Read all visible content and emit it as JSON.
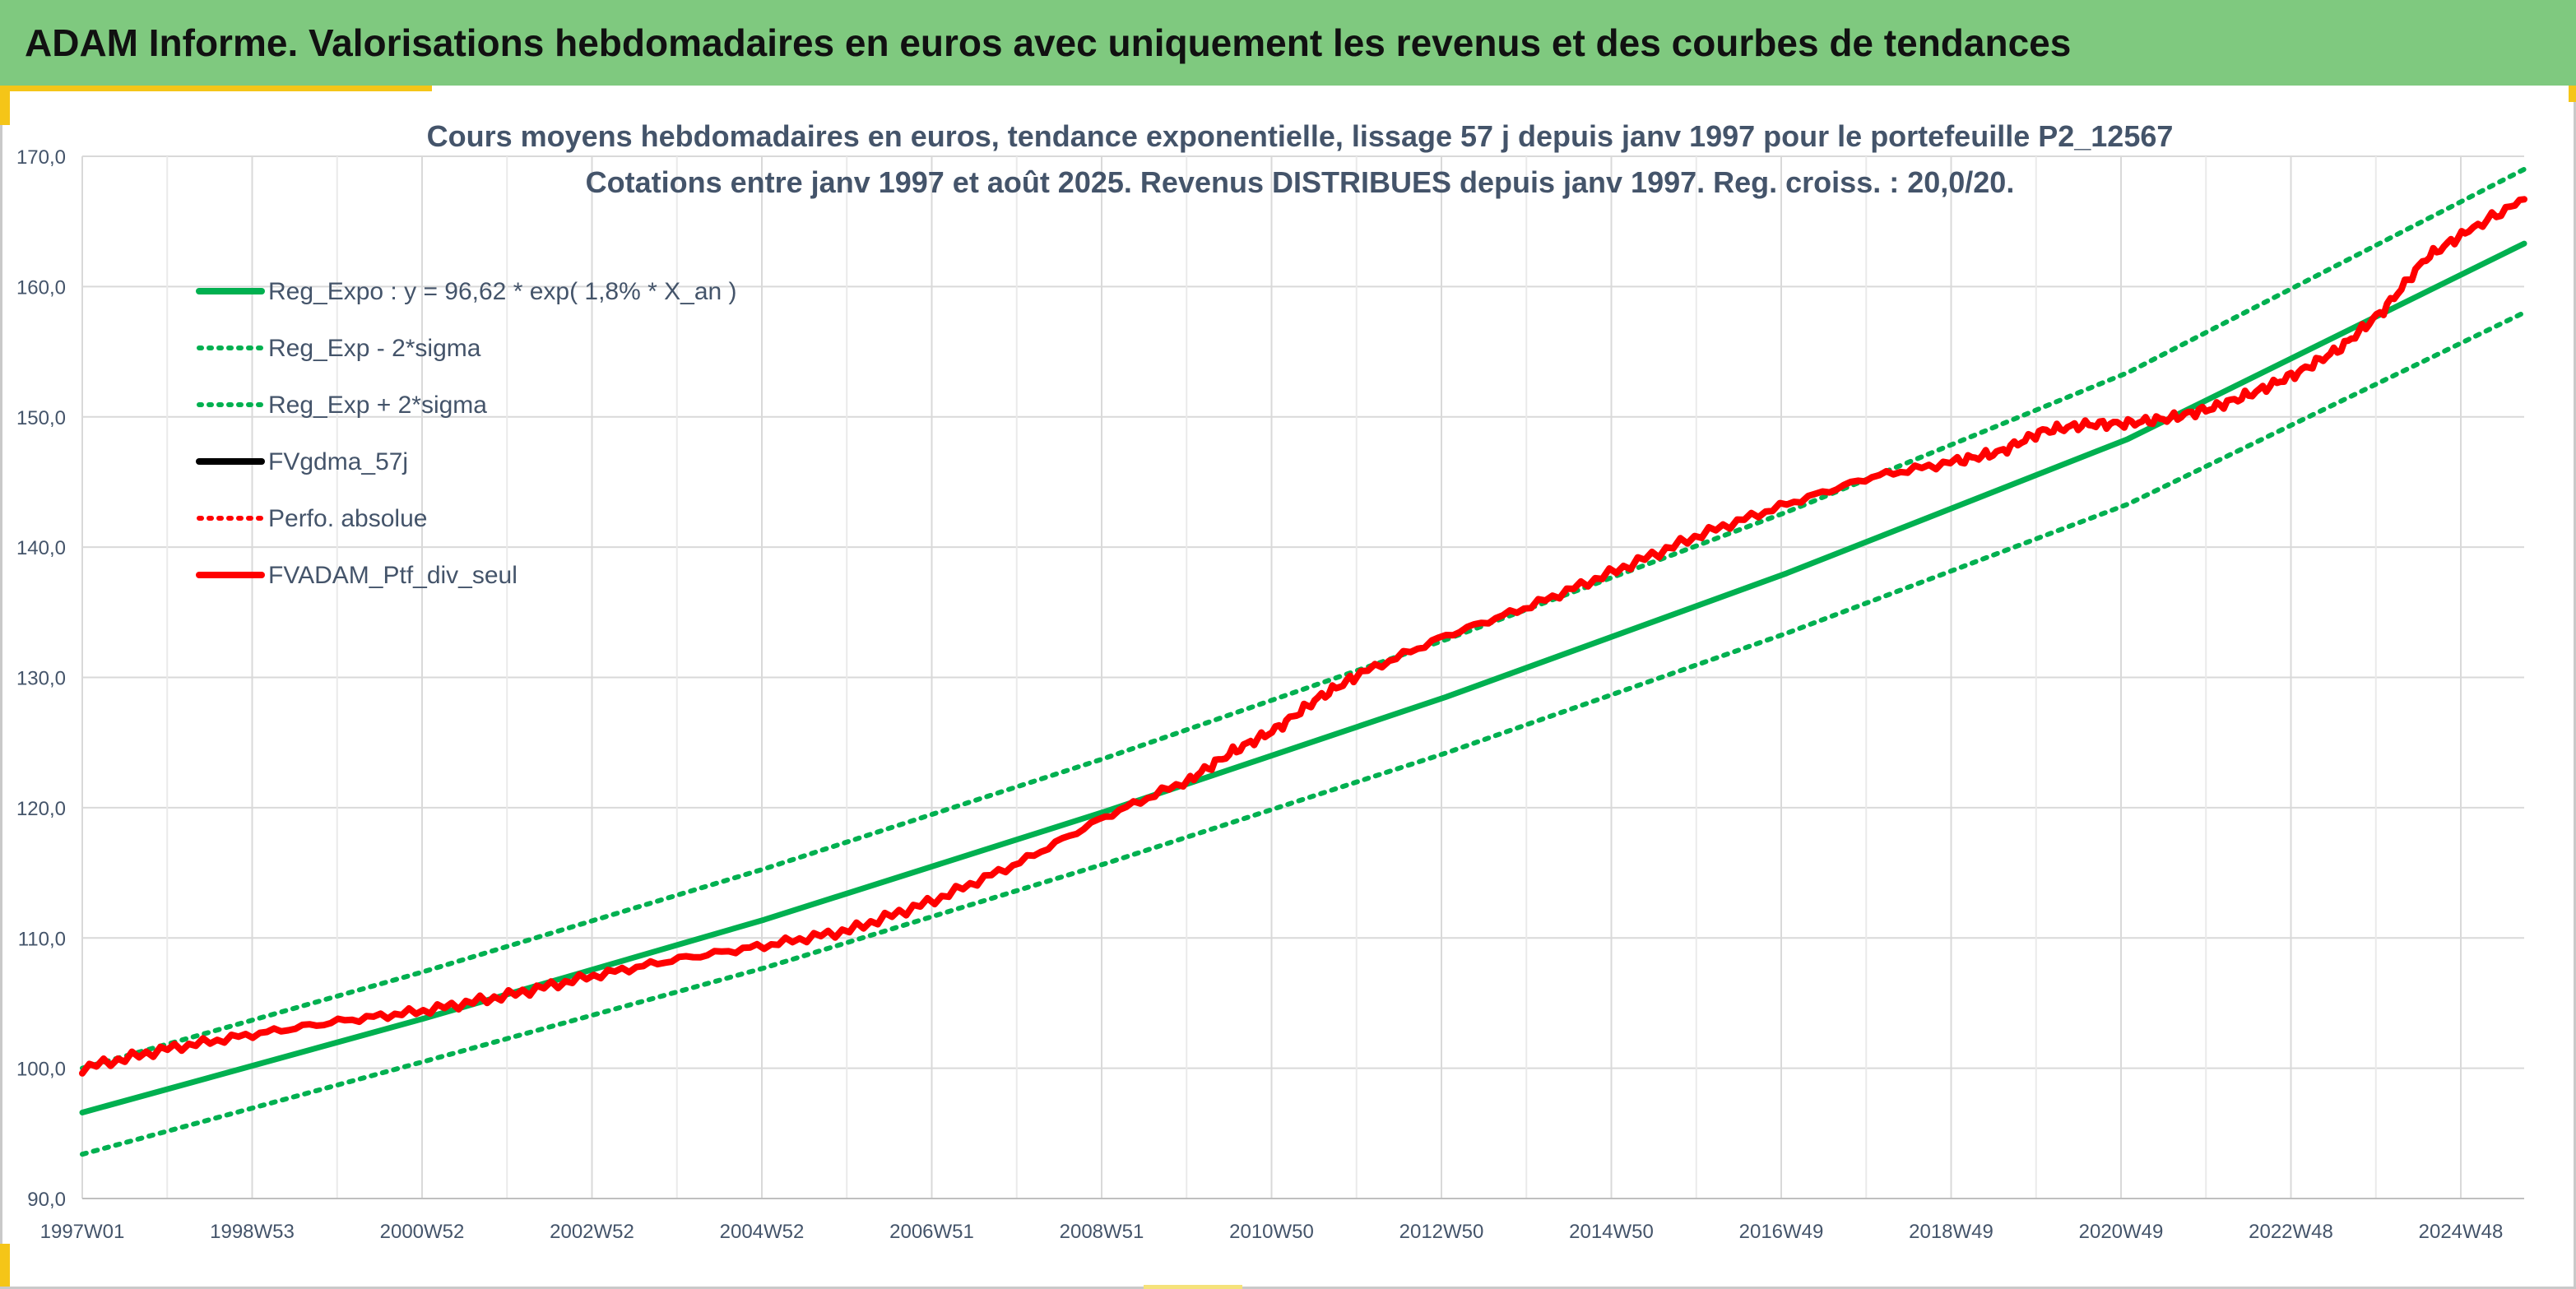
{
  "header": {
    "title": "ADAM Informe. Valorisations hebdomadaires en euros avec uniquement les revenus et des courbes de tendances"
  },
  "colors": {
    "header_bg": "#7fc97f",
    "accent": "#f5c518",
    "trend": "#00b050",
    "smoothed": "#000000",
    "portfolio": "#ff0000",
    "grid": "#d9d9d9",
    "text": "#44546a"
  },
  "chart_data": {
    "type": "line",
    "title": "Cours moyens hebdomadaires en euros, tendance exponentielle, lissage 57 j depuis janv 1997 pour le portefeuille P2_12567",
    "subtitle": "Cotations entre janv 1997 et août 2025. Revenus DISTRIBUES depuis janv 1997. Reg. croiss. : 20,0/20.",
    "xlabel": "",
    "ylabel": "",
    "ylim": [
      90,
      170
    ],
    "y_ticks": [
      "90,0",
      "100,0",
      "110,0",
      "120,0",
      "130,0",
      "140,0",
      "150,0",
      "160,0",
      "170,0"
    ],
    "x_tick_labels": [
      "1997W01",
      "1998W53",
      "2000W52",
      "2002W52",
      "2004W52",
      "2006W51",
      "2008W51",
      "2010W50",
      "2012W50",
      "2014W50",
      "2016W49",
      "2018W49",
      "2020W49",
      "2022W48",
      "2024W48"
    ],
    "x_range_years": [
      1997.0,
      2025.65
    ],
    "grid": true,
    "legend_position": "top-left",
    "legend": [
      {
        "name": "Reg_Expo : y = 96,62 * exp( 1,8% *  X_an )",
        "color": "#00b050",
        "style": "solid"
      },
      {
        "name": "Reg_Exp - 2*sigma",
        "color": "#00b050",
        "style": "dotted"
      },
      {
        "name": "Reg_Exp + 2*sigma",
        "color": "#00b050",
        "style": "dotted"
      },
      {
        "name": "FVgdma_57j",
        "color": "#000000",
        "style": "solid"
      },
      {
        "name": "Perfo. absolue",
        "color": "#ff0000",
        "style": "dotted"
      },
      {
        "name": "FVADAM_Ptf_div_seul",
        "color": "#ff0000",
        "style": "solid"
      }
    ],
    "series": [
      {
        "name": "Reg_Expo : y = 96,62 * exp( 1,8% *  X_an )",
        "x": [
          1997.0,
          2001.0,
          2005.0,
          2009.0,
          2013.0,
          2017.0,
          2021.0,
          2025.65
        ],
        "values": [
          96.6,
          103.8,
          111.4,
          119.7,
          128.5,
          138.0,
          148.3,
          163.3
        ]
      },
      {
        "name": "Reg_Exp - 2*sigma",
        "x": [
          1997.0,
          2001.0,
          2005.0,
          2009.0,
          2013.0,
          2017.0,
          2021.0,
          2025.65
        ],
        "values": [
          93.4,
          100.5,
          107.7,
          115.7,
          124.2,
          133.4,
          143.3,
          158.0
        ]
      },
      {
        "name": "Reg_Exp + 2*sigma",
        "x": [
          1997.0,
          2001.0,
          2005.0,
          2009.0,
          2013.0,
          2017.0,
          2021.0,
          2025.65
        ],
        "values": [
          100.0,
          107.4,
          115.3,
          123.8,
          132.9,
          142.7,
          153.4,
          169.0
        ]
      },
      {
        "name": "FVgdma_57j",
        "x": [
          1997.0,
          1998.0,
          1999.0,
          2000.0,
          2001.0,
          2002.0,
          2003.0,
          2004.0,
          2005.0,
          2006.0,
          2007.0,
          2008.0,
          2009.0,
          2010.0,
          2010.5,
          2011.0,
          2011.5,
          2012.0,
          2013.0,
          2014.0,
          2015.0,
          2016.0,
          2017.0,
          2018.0,
          2019.0,
          2019.5,
          2020.0,
          2020.5,
          2021.0,
          2021.5,
          2022.0,
          2022.5,
          2023.0,
          2023.5,
          2024.0,
          2024.5,
          2025.0,
          2025.65
        ],
        "values": [
          100.0,
          101.5,
          102.6,
          103.6,
          104.4,
          105.6,
          107.1,
          108.4,
          109.4,
          110.6,
          112.9,
          115.8,
          119.3,
          122.2,
          124.3,
          126.0,
          128.4,
          130.3,
          133.2,
          135.5,
          138.2,
          141.0,
          143.3,
          145.4,
          146.6,
          147.3,
          148.9,
          149.4,
          149.5,
          149.9,
          150.7,
          151.9,
          153.4,
          155.3,
          158.2,
          162.2,
          164.3,
          166.7
        ]
      },
      {
        "name": "FVADAM_Ptf_div_seul",
        "x": [
          1997.0,
          1998.0,
          1999.0,
          2000.0,
          2001.0,
          2002.0,
          2003.0,
          2004.0,
          2005.0,
          2006.0,
          2007.0,
          2008.0,
          2009.0,
          2010.0,
          2010.5,
          2011.0,
          2011.5,
          2012.0,
          2013.0,
          2014.0,
          2015.0,
          2016.0,
          2017.0,
          2018.0,
          2019.0,
          2019.5,
          2020.0,
          2020.5,
          2021.0,
          2021.5,
          2022.0,
          2022.5,
          2023.0,
          2023.5,
          2024.0,
          2024.5,
          2025.0,
          2025.65
        ],
        "values": [
          100.0,
          101.5,
          102.6,
          103.6,
          104.4,
          105.6,
          107.1,
          108.4,
          109.4,
          110.6,
          112.9,
          115.8,
          119.3,
          122.2,
          124.3,
          126.0,
          128.4,
          130.3,
          133.2,
          135.5,
          138.2,
          141.0,
          143.3,
          145.4,
          146.6,
          147.3,
          148.9,
          149.4,
          149.5,
          149.9,
          150.7,
          151.9,
          153.4,
          155.3,
          158.2,
          162.2,
          164.3,
          166.7
        ]
      }
    ]
  }
}
